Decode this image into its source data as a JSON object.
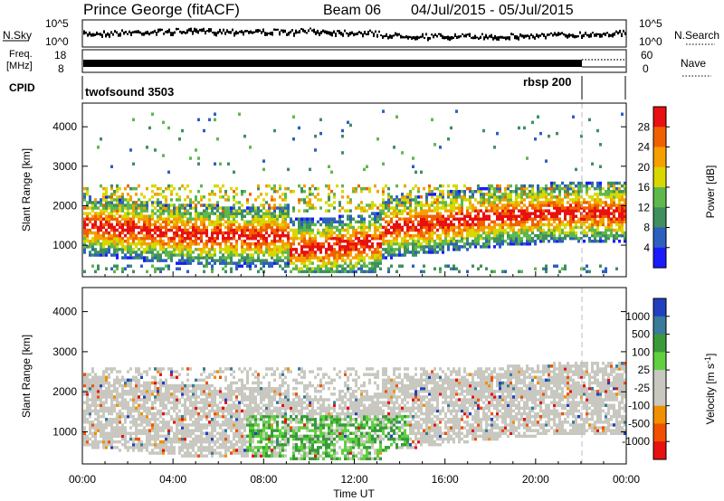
{
  "header": {
    "station": "Prince George (fitACF)",
    "beam": "Beam 06",
    "date_range": "04/Jul/2015 - 05/Jul/2015"
  },
  "panels": {
    "nsky": {
      "label": "N.Sky",
      "tick_top": "10^5",
      "tick_bottom": "10^0"
    },
    "nsearch": {
      "label": "N.Search",
      "tick_top": "10^5",
      "tick_bottom": "10^0"
    },
    "freq": {
      "label_line1": "Freq.",
      "label_line2": "[MHz]",
      "tick_top": "18",
      "tick_bottom": "8"
    },
    "nave": {
      "label": "Nave",
      "tick_top": "60",
      "tick_bottom": "0"
    },
    "cpid": {
      "label": "CPID",
      "mode1": "twofsound 3503",
      "mode2": "rbsp 200"
    }
  },
  "chart_data": [
    {
      "type": "heatmap",
      "panel": "power",
      "ylabel": "Slant Range [km]",
      "xlabel": "",
      "ylim": [
        200,
        4600
      ],
      "y_ticks": [
        "1000",
        "2000",
        "3000",
        "4000"
      ],
      "x_ticks": [
        "00:00",
        "04:00",
        "08:00",
        "12:00",
        "16:00",
        "20:00",
        "00:00"
      ],
      "xlim": [
        "00:00",
        "24:00"
      ],
      "colorbar": {
        "label": "Power [dB]",
        "ticks": [
          "4",
          "8",
          "12",
          "16",
          "20",
          "24",
          "28"
        ],
        "colors": [
          "#1a1aff",
          "#2c5fbf",
          "#3f8f5f",
          "#5fb84c",
          "#d8d800",
          "#f5a000",
          "#f06000",
          "#e81010"
        ]
      }
    },
    {
      "type": "heatmap",
      "panel": "velocity",
      "ylabel": "Slant Range [km]",
      "xlabel": "Time UT",
      "ylim": [
        200,
        4600
      ],
      "y_ticks": [
        "1000",
        "2000",
        "3000",
        "4000"
      ],
      "x_ticks": [
        "00:00",
        "04:00",
        "08:00",
        "12:00",
        "16:00",
        "20:00",
        "00:00"
      ],
      "xlim": [
        "00:00",
        "24:00"
      ],
      "colorbar": {
        "label": "Velocity [m s^-1]",
        "ticks": [
          "1000",
          "500",
          "100",
          "25",
          "-25",
          "-100",
          "-500",
          "-1000"
        ],
        "colors": [
          "#2040c0",
          "#3a7a9a",
          "#3a9a3a",
          "#60d040",
          "#c8c8c0",
          "#c8c8c0",
          "#f09000",
          "#f05000",
          "#e81010"
        ]
      }
    }
  ]
}
